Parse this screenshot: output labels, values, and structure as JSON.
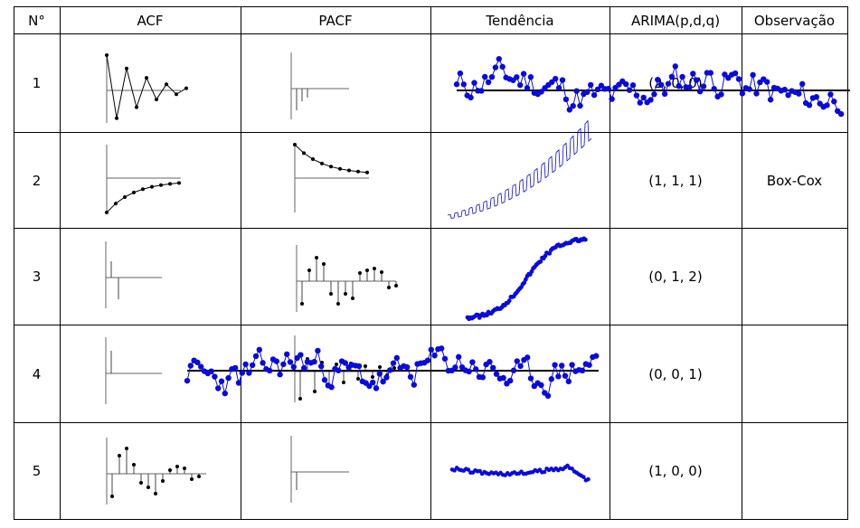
{
  "table": {
    "headers": [
      "N°",
      "ACF",
      "PACF",
      "Tendência",
      "ARIMA(p,d,q)",
      "Observação"
    ],
    "rows": [
      {
        "n": "1",
        "arima": "(2, 0, 0)",
        "obs": ""
      },
      {
        "n": "2",
        "arima": "(1, 1, 1)",
        "obs": "Box-Cox"
      },
      {
        "n": "3",
        "arima": "(0, 1, 2)",
        "obs": ""
      },
      {
        "n": "4",
        "arima": "(0, 0, 1)",
        "obs": ""
      },
      {
        "n": "5",
        "arima": "(1, 0, 0)",
        "obs": ""
      }
    ]
  },
  "colors": {
    "lines": "#000000",
    "series": "#0a0adc",
    "stems": "#444444"
  },
  "plots": [
    {
      "row": 1,
      "acf": "damped-oscillation",
      "pacf": "two-negative-spikes",
      "trend": "stationary-noisy-series"
    },
    {
      "row": 2,
      "acf": "slow-growth-curve",
      "pacf": "slow-decay-curve",
      "trend": "increasing-seasonal-series"
    },
    {
      "row": 3,
      "acf": "single-spike",
      "pacf": "alternating-stems",
      "trend": "increasing-trend-series"
    },
    {
      "row": 4,
      "acf": "single-spike",
      "pacf": "alternating-stems",
      "trend": "stationary-noisy-series"
    },
    {
      "row": 5,
      "acf": "alternating-stems",
      "pacf": "single-negative-spike",
      "trend": "flat-declining-series"
    }
  ]
}
